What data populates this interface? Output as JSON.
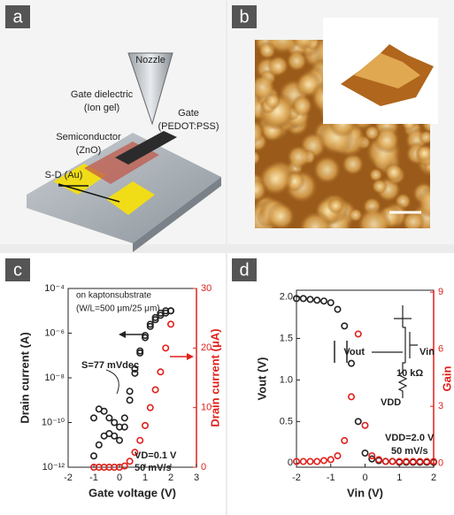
{
  "panels": {
    "a": {
      "label": "a",
      "nozzle": "Nozzle",
      "dielectric": [
        "Gate dielectric",
        "(Ion gel)"
      ],
      "gate": [
        "Gate",
        "(PEDOT:PSS)"
      ],
      "semiconductor": [
        "Semiconductor",
        "(ZnO)"
      ],
      "sd": "S-D (Au)"
    },
    "b": {
      "label": "b"
    }
  },
  "chart_data": [
    {
      "type": "scatter",
      "panel_label": "c",
      "xlabel": "Gate voltage (V)",
      "ylabel": "Drain current (A)",
      "y2label": "Drain current (μA)",
      "log_y": true,
      "x": [
        -1,
        -0.8,
        -0.6,
        -0.4,
        -0.2,
        0,
        0.2,
        0.4,
        0.6,
        0.8,
        1.0,
        1.2,
        1.4,
        1.6,
        1.8,
        2.0
      ],
      "series": [
        {
          "color": "#222222",
          "values": [
            3.2e-12,
            1e-11,
            2.5e-11,
            3.2e-11,
            2.5e-11,
            1.6e-11,
            6.3e-11,
            1e-09,
            1.6e-08,
            1.3e-07,
            6.3e-07,
            2e-06,
            4e-06,
            6.3e-06,
            7.9e-06,
            1e-05
          ]
        },
        {
          "color": "#222222",
          "values": [
            1.6e-10,
            4e-10,
            3.2e-10,
            1.6e-10,
            1e-10,
            6.3e-11,
            1.6e-10,
            2.5e-09,
            2.5e-08,
            1.6e-07,
            7.9e-07,
            2.5e-06,
            5e-06,
            7.9e-06,
            1e-05,
            1e-05
          ]
        },
        {
          "color": "#e0201b",
          "axis": "y2",
          "values": [
            0,
            0,
            0,
            0,
            0,
            0,
            0.2,
            1,
            2.5,
            4.5,
            7,
            10,
            13,
            16,
            20,
            24
          ]
        }
      ],
      "xlim": [
        -2,
        3
      ],
      "xticks": [
        -2,
        -1,
        0,
        1,
        2,
        3
      ],
      "ylim": [
        1e-12,
        0.0001
      ],
      "yticks": [
        {
          "value": 1e-12,
          "label": "10⁻¹²"
        },
        {
          "value": 1e-10,
          "label": "10⁻¹⁰"
        },
        {
          "value": 1e-08,
          "label": "10⁻⁸"
        },
        {
          "value": 1e-06,
          "label": "10⁻⁶"
        },
        {
          "value": 0.0001,
          "label": "10⁻⁴"
        }
      ],
      "y2lim": [
        0,
        30
      ],
      "y2ticks": [
        0,
        10,
        20,
        30
      ],
      "annotations": [
        "on kaptonsubstrate",
        "(W/L=500 μm/25 μm)",
        "S=77 mVdec",
        "VD=0.1 V",
        "50 mV/s"
      ]
    },
    {
      "type": "scatter",
      "panel_label": "d",
      "xlabel": "Vin (V)",
      "ylabel": "Vout (V)",
      "y2label": "Gain",
      "x": [
        -2,
        -1.8,
        -1.6,
        -1.4,
        -1.2,
        -1.0,
        -0.8,
        -0.6,
        -0.4,
        -0.2,
        0,
        0.2,
        0.4,
        0.6,
        0.8,
        1.0,
        1.2,
        1.4,
        1.6,
        1.8,
        2.0
      ],
      "series": [
        {
          "color": "#222222",
          "values": [
            1.98,
            1.98,
            1.97,
            1.96,
            1.95,
            1.93,
            1.85,
            1.65,
            1.2,
            0.5,
            0.12,
            0.05,
            0.03,
            0.02,
            0.02,
            0.01,
            0.01,
            0.01,
            0.01,
            0.01,
            0.01
          ]
        },
        {
          "color": "#e0201b",
          "axis": "y2",
          "values": [
            0.1,
            0.1,
            0.1,
            0.1,
            0.15,
            0.2,
            0.4,
            1.2,
            3.5,
            6.8,
            2,
            0.4,
            0.2,
            0.1,
            0.1,
            0.1,
            0.1,
            0.1,
            0.1,
            0.1,
            0.1
          ]
        }
      ],
      "xlim": [
        -2,
        2
      ],
      "xticks": [
        -2,
        -1,
        0,
        1,
        2
      ],
      "ylim": [
        -0.05,
        2.08
      ],
      "yticks": [
        0,
        0.5,
        {
          "value": 1,
          "label": "1.0"
        },
        1.5,
        {
          "value": 2,
          "label": "2.0"
        }
      ],
      "y2lim": [
        -0.2,
        9.1
      ],
      "y2ticks": [
        0,
        3,
        6,
        9
      ],
      "annotations": [
        "VDD=2.0 V",
        "50 mV/s",
        "Vout",
        "Vin",
        "10 kΩ",
        "VDD"
      ]
    }
  ]
}
